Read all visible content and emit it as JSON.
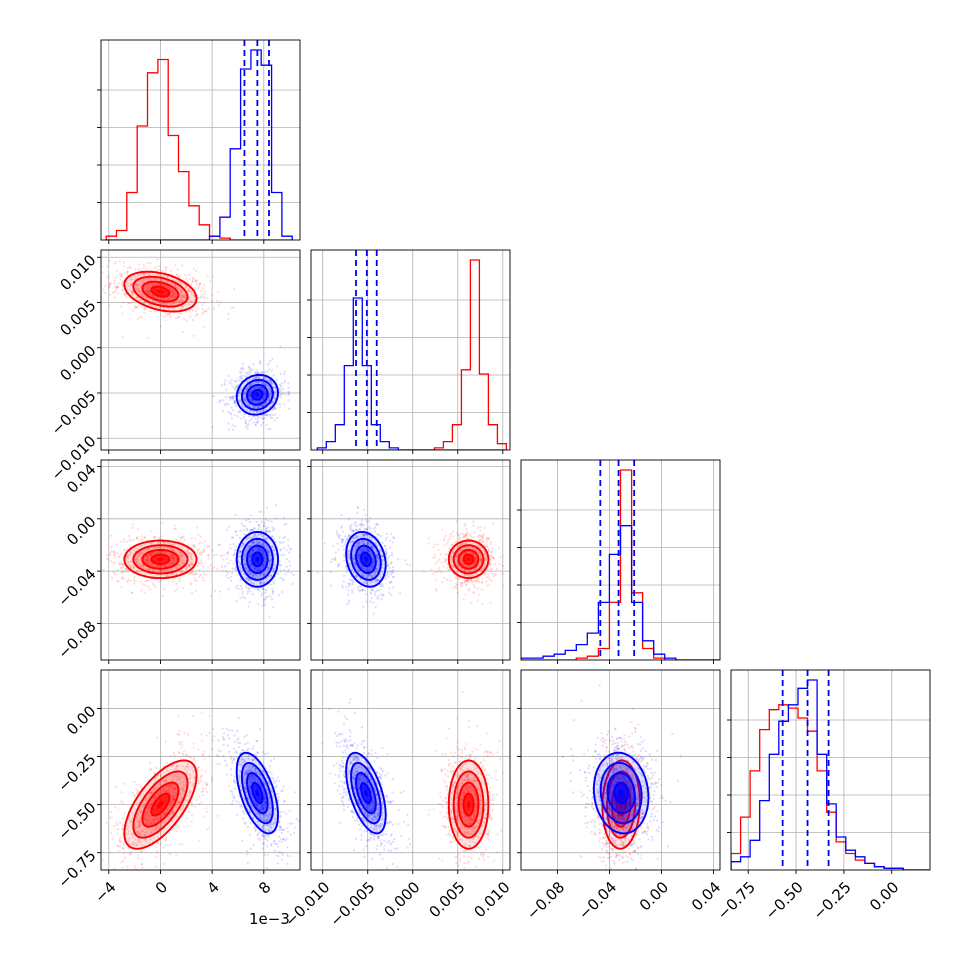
{
  "figure": {
    "offset_text": "1e−3",
    "colors": {
      "red": "#ff0000",
      "blue": "#0000ff",
      "grid": "#b0b0b0",
      "axis": "#000000"
    }
  },
  "chart_data": {
    "type": "corner",
    "grid": true,
    "parameters": [
      {
        "index": 0,
        "range": [
          -4.6,
          10.8
        ],
        "ticks": [
          -4,
          0,
          4,
          8
        ],
        "tick_labels": [
          "−4",
          "0",
          "4",
          "8"
        ],
        "scale_factor_label": "1e−3"
      },
      {
        "index": 1,
        "range": [
          -0.0113,
          0.0108
        ],
        "ticks": [
          -0.01,
          -0.005,
          0.0,
          0.005,
          0.01
        ],
        "tick_labels": [
          "−0.010",
          "−0.005",
          "0.000",
          "0.005",
          "0.010"
        ]
      },
      {
        "index": 2,
        "range": [
          -0.108,
          0.045
        ],
        "ticks": [
          -0.08,
          -0.04,
          0.0,
          0.04
        ],
        "tick_labels": [
          "−0.08",
          "−0.04",
          "0.00",
          "0.04"
        ]
      },
      {
        "index": 3,
        "range": [
          -0.84,
          0.2
        ],
        "ticks": [
          -0.75,
          -0.5,
          -0.25,
          0.0
        ],
        "tick_labels": [
          "−0.75",
          "−0.50",
          "−0.25",
          "0.00"
        ]
      }
    ],
    "series": [
      {
        "color": "#ff0000",
        "means": [
          0.0,
          0.0062,
          -0.031,
          -0.5
        ],
        "std": [
          1.4,
          0.0011,
          0.0072,
          0.115
        ],
        "correlations": {
          "0-1": -0.35,
          "0-2": 0.0,
          "0-3": 0.65,
          "1-2": 0.0,
          "1-3": 0.0,
          "2-3": 0.05
        }
      },
      {
        "color": "#0000ff",
        "means": [
          7.5,
          -0.0052,
          -0.031,
          -0.44
        ],
        "std": [
          0.8,
          0.0011,
          0.0105,
          0.105
        ],
        "correlations": {
          "0-1": 0.1,
          "0-2": 0.0,
          "0-3": -0.55,
          "1-2": -0.2,
          "1-3": -0.55,
          "2-3": -0.1
        },
        "quantile_lines": [
          [
            6.5,
            7.5,
            8.4
          ],
          [
            -0.0063,
            -0.0051,
            -0.004
          ],
          [
            -0.047,
            -0.033,
            -0.021
          ],
          [
            -0.57,
            -0.44,
            -0.33
          ]
        ]
      }
    ],
    "histograms": [
      {
        "param": 0,
        "bin_edges": [
          -4.2,
          -3.4,
          -2.6,
          -1.8,
          -1.0,
          -0.2,
          0.6,
          1.4,
          2.2,
          3.0,
          3.8,
          4.6,
          5.4,
          6.2,
          7.0,
          7.8,
          8.6,
          9.4,
          10.2
        ],
        "red": [
          2,
          5,
          25,
          60,
          88,
          95,
          55,
          36,
          18,
          8,
          2,
          1,
          0,
          0,
          0,
          0,
          0,
          0
        ],
        "blue": [
          0,
          0,
          0,
          0,
          0,
          0,
          0,
          0,
          0,
          0,
          2,
          12,
          48,
          90,
          100,
          92,
          25,
          2
        ]
      },
      {
        "param": 1,
        "bin_edges": [
          -0.0106,
          -0.0096,
          -0.0086,
          -0.0076,
          -0.0066,
          -0.0056,
          -0.0046,
          -0.0036,
          -0.0026,
          -0.0016,
          -0.0006,
          0.0004,
          0.0014,
          0.0024,
          0.0034,
          0.0044,
          0.0054,
          0.0064,
          0.0074,
          0.0084,
          0.0094,
          0.0104
        ],
        "red": [
          0,
          0,
          0,
          0,
          0,
          0,
          0,
          0,
          0,
          0,
          0,
          0,
          0,
          1,
          4,
          12,
          38,
          90,
          36,
          12,
          3
        ],
        "blue": [
          1,
          4,
          12,
          40,
          72,
          40,
          12,
          4,
          1,
          0,
          0,
          0,
          0,
          0,
          0,
          0,
          0,
          0,
          0,
          0,
          0
        ]
      },
      {
        "param": 2,
        "bin_edges": [
          -0.108,
          -0.0995,
          -0.091,
          -0.0825,
          -0.074,
          -0.0655,
          -0.057,
          -0.0485,
          -0.04,
          -0.0315,
          -0.023,
          -0.0145,
          -0.006,
          0.0025,
          0.011,
          0.0195,
          0.028,
          0.0365,
          0.045
        ],
        "red": [
          0,
          0,
          0,
          0,
          0,
          1,
          2,
          6,
          30,
          99,
          35,
          6,
          1,
          0,
          0,
          0,
          0,
          0
        ],
        "blue": [
          1,
          1,
          2,
          3,
          5,
          8,
          14,
          30,
          55,
          70,
          30,
          10,
          3,
          1,
          0,
          0,
          0,
          0
        ]
      },
      {
        "param": 3,
        "bin_edges": [
          -0.84,
          -0.79,
          -0.74,
          -0.69,
          -0.64,
          -0.59,
          -0.54,
          -0.49,
          -0.44,
          -0.39,
          -0.34,
          -0.29,
          -0.24,
          -0.19,
          -0.14,
          -0.09,
          -0.04,
          0.01,
          0.06,
          0.11,
          0.16,
          0.2
        ],
        "red": [
          10,
          32,
          60,
          85,
          97,
          100,
          98,
          92,
          84,
          60,
          35,
          17,
          10,
          6,
          4,
          2,
          1,
          1,
          0,
          0,
          0
        ],
        "blue": [
          5,
          8,
          18,
          42,
          70,
          90,
          100,
          110,
          115,
          70,
          40,
          20,
          12,
          8,
          4,
          2,
          1,
          1,
          0,
          0,
          0
        ]
      }
    ]
  }
}
